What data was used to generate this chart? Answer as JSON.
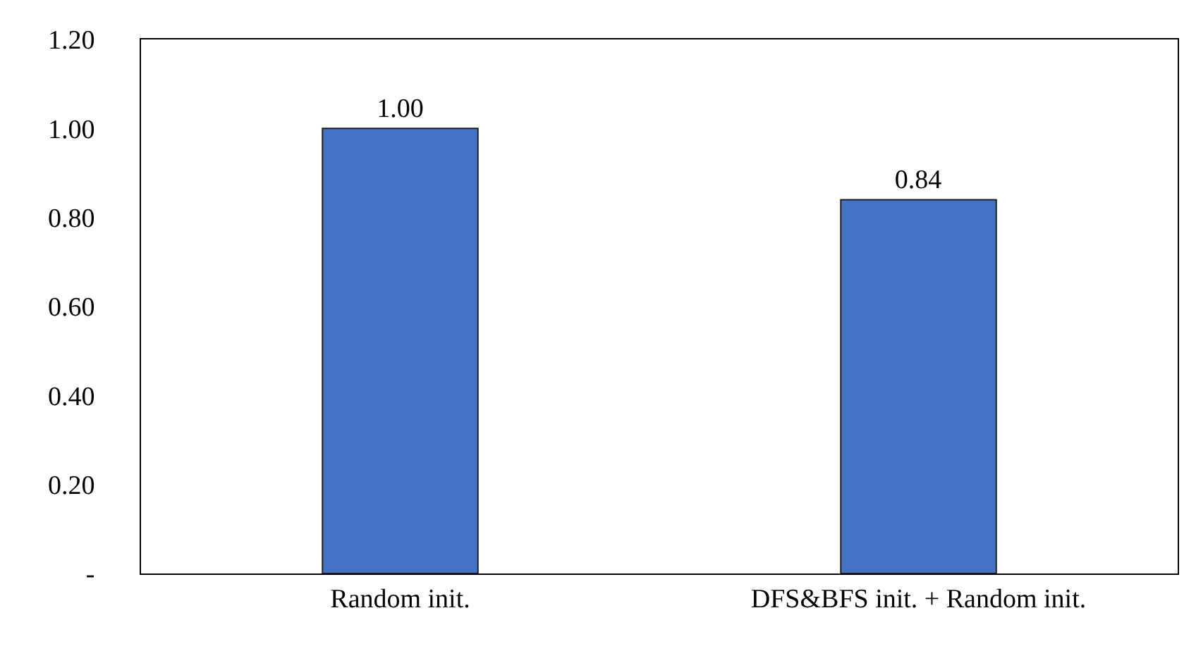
{
  "chart_data": {
    "type": "bar",
    "categories": [
      "Random init.",
      "DFS&BFS init. + Random init."
    ],
    "values": [
      1.0,
      0.84
    ],
    "value_labels": [
      "1.00",
      "0.84"
    ],
    "color": "#4472c4",
    "ylim": [
      0,
      1.2
    ],
    "yticks": [
      {
        "value": 0,
        "label": "-"
      },
      {
        "value": 0.2,
        "label": "0.20"
      },
      {
        "value": 0.4,
        "label": "0.40"
      },
      {
        "value": 0.6,
        "label": "0.60"
      },
      {
        "value": 0.8,
        "label": "0.80"
      },
      {
        "value": 1.0,
        "label": "1.00"
      },
      {
        "value": 1.2,
        "label": "1.20"
      }
    ],
    "grid": false,
    "legend": false
  }
}
